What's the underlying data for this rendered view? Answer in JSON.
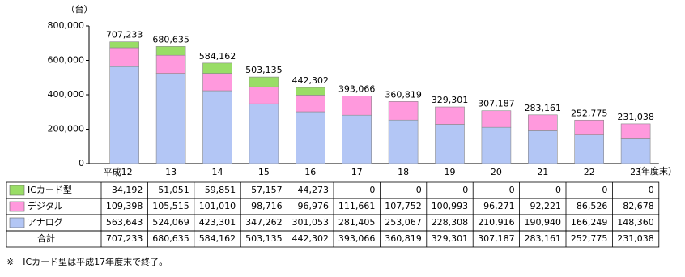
{
  "chart_data": {
    "type": "bar",
    "stacked": true,
    "y_unit": "（台）",
    "x_unit": "（年度末）",
    "categories": [
      "平成12",
      "13",
      "14",
      "15",
      "16",
      "17",
      "18",
      "19",
      "20",
      "21",
      "22",
      "23"
    ],
    "series": [
      {
        "name": "ICカード型",
        "color": "#99dd66",
        "values": [
          34192,
          51051,
          59851,
          57157,
          44273,
          0,
          0,
          0,
          0,
          0,
          0,
          0
        ],
        "value_labels": [
          "34,192",
          "51,051",
          "59,851",
          "57,157",
          "44,273",
          "0",
          "0",
          "0",
          "0",
          "0",
          "0",
          "0"
        ]
      },
      {
        "name": "デジタル",
        "color": "#ff99dd",
        "values": [
          109398,
          105515,
          101010,
          98716,
          96976,
          111661,
          107752,
          100993,
          96271,
          92221,
          86526,
          82678
        ],
        "value_labels": [
          "109,398",
          "105,515",
          "101,010",
          "98,716",
          "96,976",
          "111,661",
          "107,752",
          "100,993",
          "96,271",
          "92,221",
          "86,526",
          "82,678"
        ]
      },
      {
        "name": "アナログ",
        "color": "#b3c6f5",
        "values": [
          563643,
          524069,
          423301,
          347262,
          301053,
          281405,
          253067,
          228308,
          210916,
          190940,
          166249,
          148360
        ],
        "value_labels": [
          "563,643",
          "524,069",
          "423,301",
          "347,262",
          "301,053",
          "281,405",
          "253,067",
          "228,308",
          "210,916",
          "190,940",
          "166,249",
          "148,360"
        ]
      }
    ],
    "total": {
      "name": "合計",
      "values": [
        707233,
        680635,
        584162,
        503135,
        442302,
        393066,
        360819,
        329301,
        307187,
        283161,
        252775,
        231038
      ],
      "value_labels": [
        "707,233",
        "680,635",
        "584,162",
        "503,135",
        "442,302",
        "393,066",
        "360,819",
        "329,301",
        "307,187",
        "283,161",
        "252,775",
        "231,038"
      ]
    },
    "ylim": [
      0,
      800000
    ],
    "yticks": [
      0,
      {
        "value": 200000,
        "label": "200,000"
      },
      {
        "value": 400000,
        "label": "400,000"
      },
      {
        "value": 600000,
        "label": "600,000"
      },
      {
        "value": 800000,
        "label": "800,000"
      }
    ],
    "note": "※　ICカード型は平成17年度末で終了。"
  }
}
